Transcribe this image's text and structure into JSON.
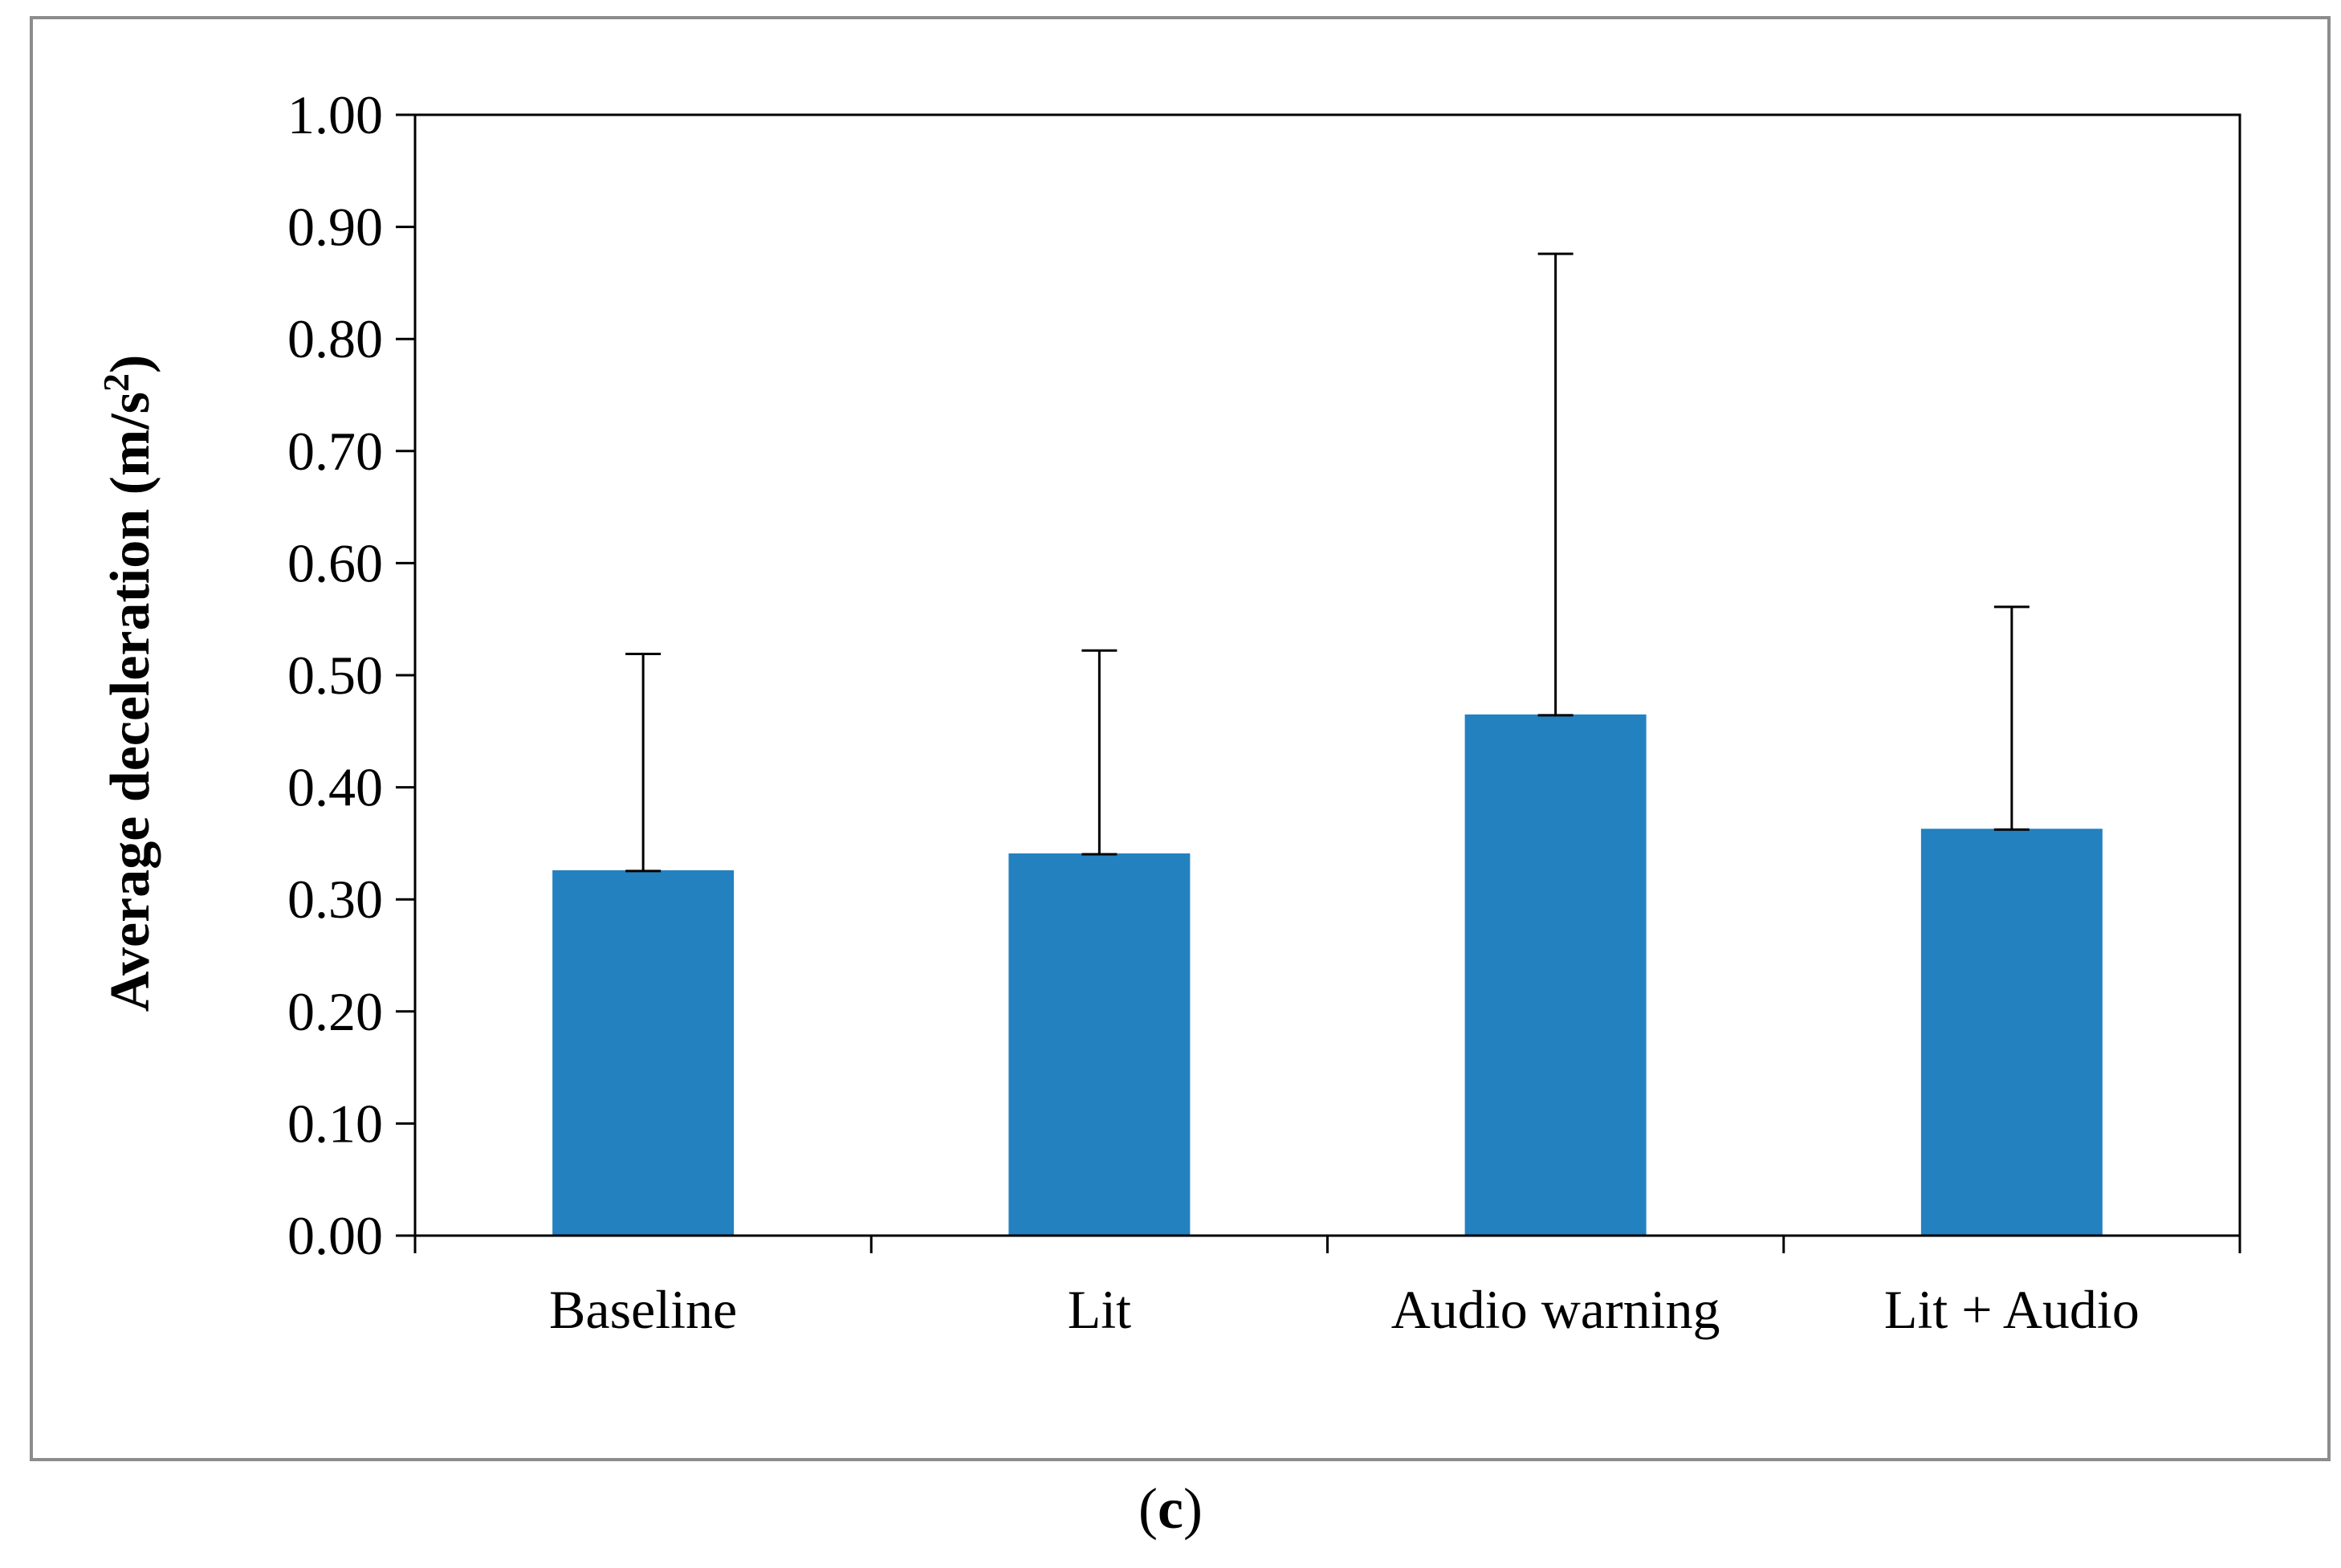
{
  "panel": {
    "open": "(",
    "letter": "c",
    "close": ")"
  },
  "chart_data": {
    "type": "bar",
    "title": "",
    "xlabel": "",
    "ylabel": "Average deceleration (m/s",
    "ylabel_superscript": "2",
    "ylabel_suffix": ")",
    "categories": [
      "Baseline",
      "Lit",
      "Audio warning",
      "Lit + Audio"
    ],
    "series": [
      {
        "name": "Average deceleration",
        "color": "#2381c0",
        "values": [
          0.326,
          0.341,
          0.465,
          0.363
        ],
        "error_plus": [
          0.193,
          0.181,
          0.411,
          0.198
        ]
      }
    ],
    "ylim": [
      0,
      1.0
    ],
    "yticks": [
      "0.00",
      "0.10",
      "0.20",
      "0.30",
      "0.40",
      "0.50",
      "0.60",
      "0.70",
      "0.80",
      "0.90",
      "1.00"
    ],
    "grid": false,
    "legend": "none"
  }
}
